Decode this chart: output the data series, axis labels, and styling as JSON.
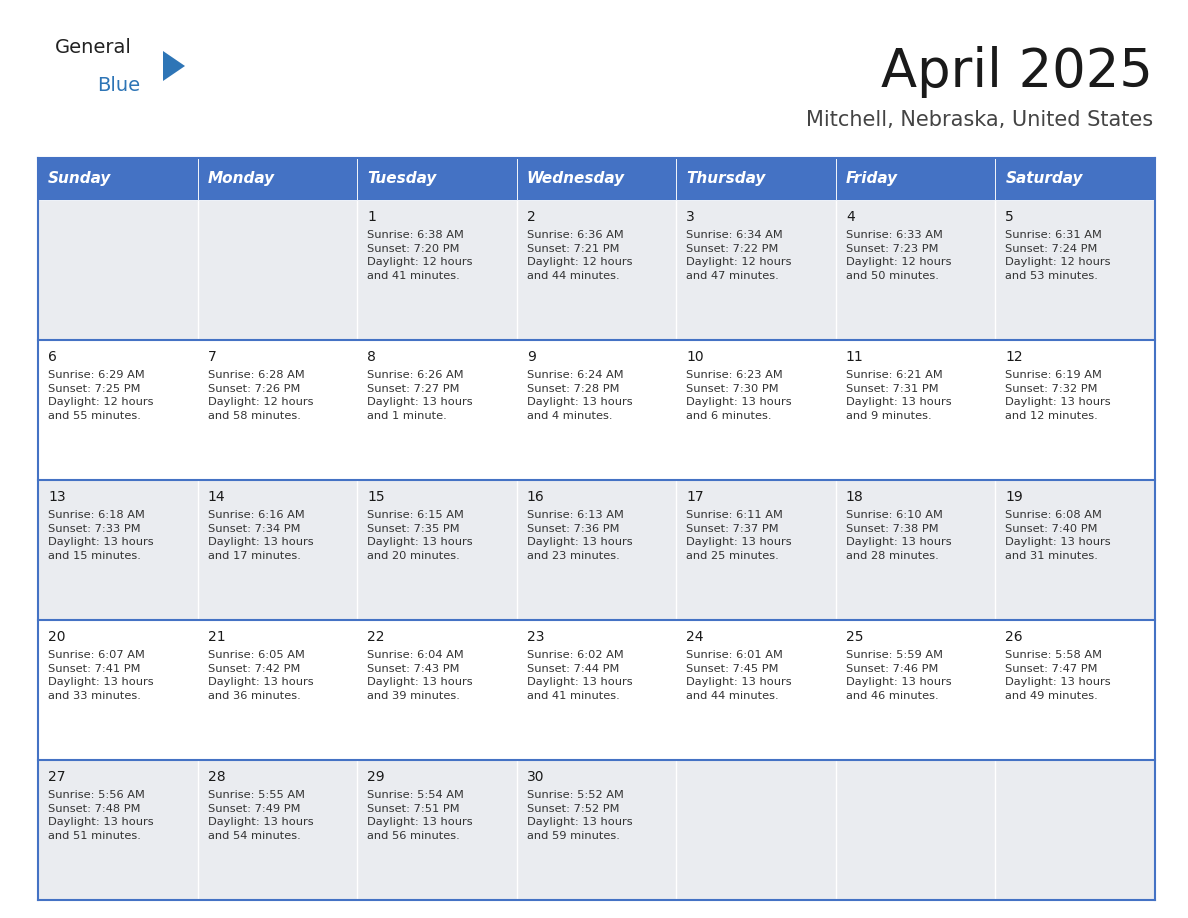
{
  "title": "April 2025",
  "subtitle": "Mitchell, Nebraska, United States",
  "header_bg": "#4472C4",
  "header_text": "#FFFFFF",
  "row_bg_light": "#EAECF0",
  "row_bg_white": "#FFFFFF",
  "separator_color": "#4472C4",
  "day_headers": [
    "Sunday",
    "Monday",
    "Tuesday",
    "Wednesday",
    "Thursday",
    "Friday",
    "Saturday"
  ],
  "calendar_data": [
    [
      "",
      "",
      "1\nSunrise: 6:38 AM\nSunset: 7:20 PM\nDaylight: 12 hours\nand 41 minutes.",
      "2\nSunrise: 6:36 AM\nSunset: 7:21 PM\nDaylight: 12 hours\nand 44 minutes.",
      "3\nSunrise: 6:34 AM\nSunset: 7:22 PM\nDaylight: 12 hours\nand 47 minutes.",
      "4\nSunrise: 6:33 AM\nSunset: 7:23 PM\nDaylight: 12 hours\nand 50 minutes.",
      "5\nSunrise: 6:31 AM\nSunset: 7:24 PM\nDaylight: 12 hours\nand 53 minutes."
    ],
    [
      "6\nSunrise: 6:29 AM\nSunset: 7:25 PM\nDaylight: 12 hours\nand 55 minutes.",
      "7\nSunrise: 6:28 AM\nSunset: 7:26 PM\nDaylight: 12 hours\nand 58 minutes.",
      "8\nSunrise: 6:26 AM\nSunset: 7:27 PM\nDaylight: 13 hours\nand 1 minute.",
      "9\nSunrise: 6:24 AM\nSunset: 7:28 PM\nDaylight: 13 hours\nand 4 minutes.",
      "10\nSunrise: 6:23 AM\nSunset: 7:30 PM\nDaylight: 13 hours\nand 6 minutes.",
      "11\nSunrise: 6:21 AM\nSunset: 7:31 PM\nDaylight: 13 hours\nand 9 minutes.",
      "12\nSunrise: 6:19 AM\nSunset: 7:32 PM\nDaylight: 13 hours\nand 12 minutes."
    ],
    [
      "13\nSunrise: 6:18 AM\nSunset: 7:33 PM\nDaylight: 13 hours\nand 15 minutes.",
      "14\nSunrise: 6:16 AM\nSunset: 7:34 PM\nDaylight: 13 hours\nand 17 minutes.",
      "15\nSunrise: 6:15 AM\nSunset: 7:35 PM\nDaylight: 13 hours\nand 20 minutes.",
      "16\nSunrise: 6:13 AM\nSunset: 7:36 PM\nDaylight: 13 hours\nand 23 minutes.",
      "17\nSunrise: 6:11 AM\nSunset: 7:37 PM\nDaylight: 13 hours\nand 25 minutes.",
      "18\nSunrise: 6:10 AM\nSunset: 7:38 PM\nDaylight: 13 hours\nand 28 minutes.",
      "19\nSunrise: 6:08 AM\nSunset: 7:40 PM\nDaylight: 13 hours\nand 31 minutes."
    ],
    [
      "20\nSunrise: 6:07 AM\nSunset: 7:41 PM\nDaylight: 13 hours\nand 33 minutes.",
      "21\nSunrise: 6:05 AM\nSunset: 7:42 PM\nDaylight: 13 hours\nand 36 minutes.",
      "22\nSunrise: 6:04 AM\nSunset: 7:43 PM\nDaylight: 13 hours\nand 39 minutes.",
      "23\nSunrise: 6:02 AM\nSunset: 7:44 PM\nDaylight: 13 hours\nand 41 minutes.",
      "24\nSunrise: 6:01 AM\nSunset: 7:45 PM\nDaylight: 13 hours\nand 44 minutes.",
      "25\nSunrise: 5:59 AM\nSunset: 7:46 PM\nDaylight: 13 hours\nand 46 minutes.",
      "26\nSunrise: 5:58 AM\nSunset: 7:47 PM\nDaylight: 13 hours\nand 49 minutes."
    ],
    [
      "27\nSunrise: 5:56 AM\nSunset: 7:48 PM\nDaylight: 13 hours\nand 51 minutes.",
      "28\nSunrise: 5:55 AM\nSunset: 7:49 PM\nDaylight: 13 hours\nand 54 minutes.",
      "29\nSunrise: 5:54 AM\nSunset: 7:51 PM\nDaylight: 13 hours\nand 56 minutes.",
      "30\nSunrise: 5:52 AM\nSunset: 7:52 PM\nDaylight: 13 hours\nand 59 minutes.",
      "",
      "",
      ""
    ]
  ],
  "logo_general_color": "#222222",
  "logo_blue_color": "#2E75B6",
  "logo_triangle_color": "#2E75B6",
  "title_fontsize": 38,
  "subtitle_fontsize": 15,
  "header_fontsize": 11,
  "cell_day_fontsize": 10,
  "cell_text_fontsize": 8.2
}
